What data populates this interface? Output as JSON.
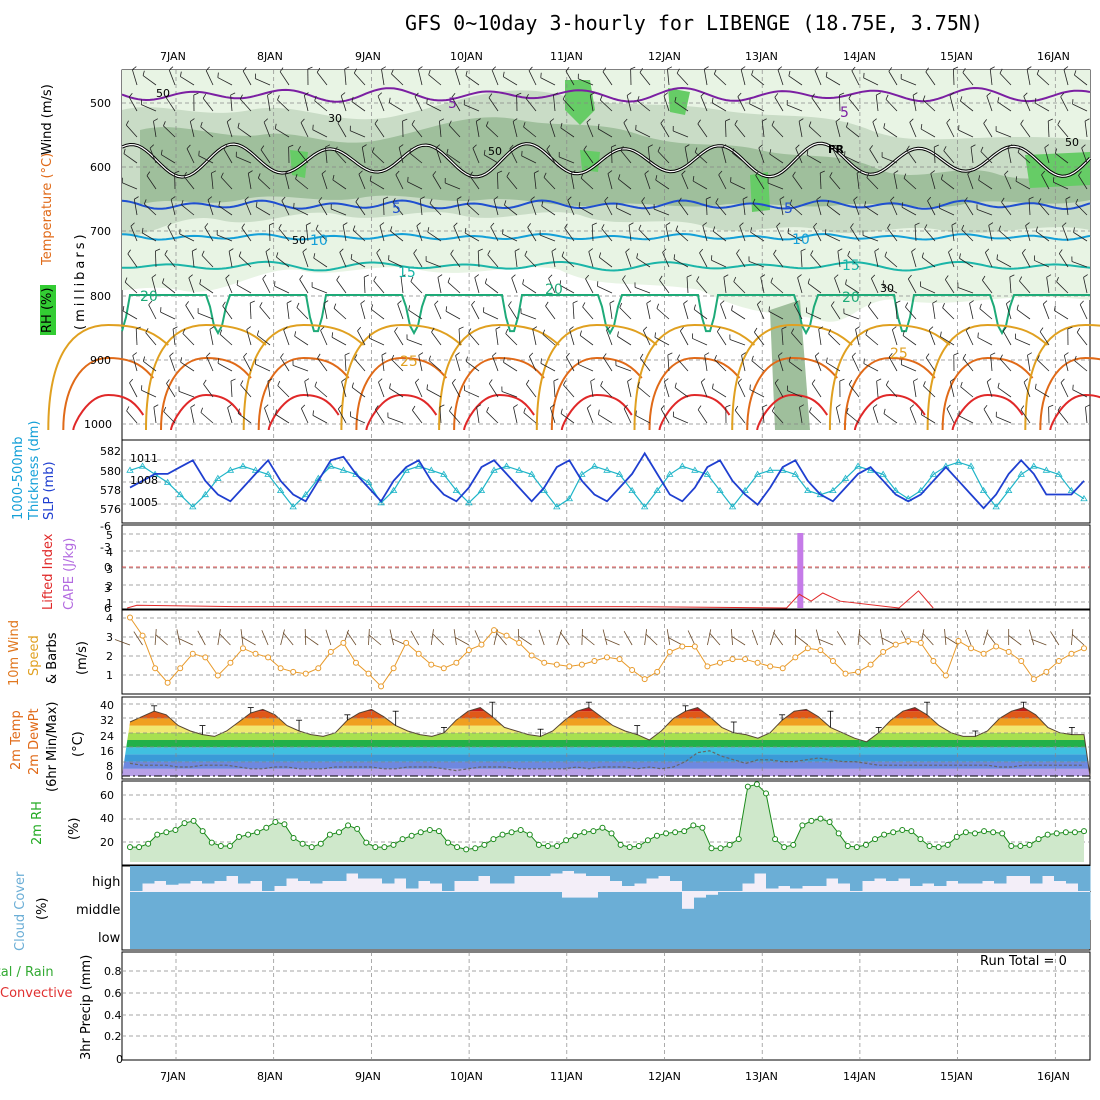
{
  "title": "GFS 0~10day 3-hourly for LIBENGE (18.75E, 3.75N)",
  "dates": [
    "7JAN",
    "8JAN",
    "9JAN",
    "10JAN",
    "11JAN",
    "12JAN",
    "13JAN",
    "14JAN",
    "15JAN",
    "16JAN"
  ],
  "colors": {
    "purple": "#7b1fa2",
    "blue": "#1f4fd0",
    "cyan": "#14a0d8",
    "teal": "#1bb5a8",
    "green": "#1eaa78",
    "gold": "#e0a020",
    "orange": "#e06a18",
    "red": "#e02828",
    "rh_light": "#e8f4e4",
    "rh_mid": "#b9cfb6",
    "rh_dark": "#7aa87a",
    "rh_bright": "#66cc66",
    "cloud": "#6baed6",
    "precip_label": "#33aa33",
    "convective": "#e03030"
  },
  "panels": {
    "upper_air": {
      "labels": [
        "Wind (m/s)",
        "Temperature (°C)",
        "RH (%)",
        "(millibars)"
      ],
      "pressure_ticks": [
        "500",
        "600",
        "700",
        "800",
        "900",
        "1000"
      ],
      "contour_labels": {
        "p5a": "5",
        "p5b": "5",
        "fr": "FR",
        "b5a": "5",
        "b5b": "5",
        "c10a": "10",
        "c10b": "10",
        "t15a": "15",
        "t15b": "15",
        "g20a": "20",
        "g20b": "20",
        "g20c": "20",
        "o25a": "25",
        "o25b": "25",
        "rh50a": "50",
        "rh30a": "30",
        "rh50b": "50",
        "rh50c": "50",
        "rh30b": "30",
        "rh50d": "50"
      }
    },
    "thickness_slp": {
      "labels": [
        "1000-500mb",
        "Thickness (dm)",
        "SLP (mb)"
      ],
      "left_ticks": [
        "582",
        "580",
        "578",
        "576"
      ],
      "right_ticks": [
        "1011",
        "1008",
        "1005"
      ]
    },
    "cape_li": {
      "labels": [
        "Lifted Index",
        "CAPE (J/kg)"
      ],
      "li_ticks": [
        "-6",
        "-3",
        "0",
        "3",
        "6"
      ],
      "cape_ticks": [
        "5",
        "4",
        "3",
        "2",
        "1"
      ]
    },
    "wind10m": {
      "labels": [
        "10m Wind",
        "Speed",
        "& Barbs",
        "(m/s)"
      ],
      "ticks": [
        "4",
        "3",
        "2",
        "1"
      ]
    },
    "temp2m": {
      "labels": [
        "2m Temp",
        "2m DewPt",
        "(6hr Min/Max)",
        "(°C)"
      ],
      "ticks": [
        "40",
        "32",
        "24",
        "16",
        "8",
        "0"
      ]
    },
    "rh2m": {
      "labels": [
        "2m RH",
        "(%)"
      ],
      "ticks": [
        "60",
        "40",
        "20"
      ]
    },
    "cloud": {
      "labels": [
        "Cloud Cover",
        "(%)"
      ],
      "levels": [
        "high",
        "middle",
        "low"
      ]
    },
    "precip": {
      "labels": [
        "Total / Rain",
        "Convective",
        "3hr Precip (mm)"
      ],
      "ticks": [
        "0.8",
        "0.6",
        "0.4",
        "0.2",
        "0"
      ],
      "run_total": "Run Total = 0"
    }
  },
  "chart_data": [
    {
      "type": "line",
      "name": "Thickness",
      "ylabel": "1000-500mb Thickness (dm)",
      "ylim": [
        575,
        583
      ],
      "values": [
        580.5,
        581,
        580,
        579,
        577.5,
        576,
        577.5,
        579.5,
        580.5,
        581,
        580.5,
        580,
        578,
        576,
        577.5,
        579.5,
        581,
        580.5,
        580,
        579,
        576.5,
        578,
        580.5,
        581,
        580.5,
        580,
        578,
        576.5,
        578,
        580.5,
        581,
        580.5,
        580,
        578,
        576,
        577,
        580,
        581,
        580.5,
        580,
        578,
        576,
        578,
        580,
        581,
        580.5,
        580,
        578,
        576,
        578,
        580,
        580.5,
        580.5,
        580,
        578,
        577.5,
        578,
        579.5,
        581,
        580.5,
        580,
        578,
        577,
        578,
        580,
        581,
        581.5,
        581,
        578,
        576,
        578,
        580,
        581,
        580.5,
        580,
        578,
        577
      ]
    },
    {
      "type": "line",
      "name": "SLP",
      "ylabel": "SLP (mb)",
      "ylim": [
        1003,
        1012.5
      ],
      "values": [
        1007,
        1008,
        1009,
        1009,
        1010,
        1011,
        1008,
        1006,
        1005,
        1007,
        1009,
        1011,
        1008,
        1006,
        1005,
        1008,
        1011,
        1011.5,
        1009,
        1007,
        1005,
        1008,
        1010,
        1011,
        1008,
        1006,
        1005,
        1007,
        1010,
        1011,
        1009,
        1007,
        1005,
        1007,
        1010,
        1011,
        1008,
        1006,
        1005,
        1007,
        1009,
        1012,
        1009,
        1006,
        1005,
        1007,
        1010,
        1011,
        1008,
        1006,
        1004.5,
        1007,
        1010,
        1011,
        1008,
        1006,
        1005,
        1007,
        1009,
        1010,
        1008,
        1006,
        1005,
        1006,
        1008,
        1010,
        1008,
        1006,
        1004,
        1006,
        1009,
        1011,
        1009,
        1006,
        1006,
        1006,
        1008
      ]
    },
    {
      "type": "bar",
      "name": "CAPE",
      "ylabel": "CAPE (J/kg)",
      "ylim": [
        0,
        5
      ],
      "x_day": 13.39,
      "values": [
        5
      ]
    },
    {
      "type": "line",
      "name": "Lifted Index",
      "ylabel": "Lifted Index",
      "ylim": [
        -6,
        6
      ],
      "points": [
        [
          6.5,
          6
        ],
        [
          6.6,
          5.6
        ],
        [
          7.6,
          5.8
        ],
        [
          11.6,
          5.8
        ],
        [
          13.25,
          6
        ],
        [
          13.38,
          4
        ],
        [
          13.5,
          5
        ],
        [
          13.62,
          3.8
        ],
        [
          13.8,
          5
        ],
        [
          14.4,
          6
        ],
        [
          14.6,
          3.5
        ],
        [
          14.75,
          6
        ]
      ]
    },
    {
      "type": "line",
      "name": "10m Wind Speed",
      "ylabel": "(m/s)",
      "ylim": [
        0,
        4.3
      ],
      "values": [
        4,
        3,
        1.2,
        0.4,
        1.2,
        2,
        1.8,
        0.8,
        1.5,
        2.3,
        2,
        1.8,
        1.2,
        1,
        0.9,
        1.2,
        2.1,
        2.6,
        1.5,
        0.9,
        0.2,
        1.2,
        2.6,
        2,
        1.4,
        1.2,
        1.5,
        2.2,
        2.5,
        3.3,
        3,
        2.6,
        1.9,
        1.5,
        1.4,
        1.3,
        1.4,
        1.6,
        1.8,
        1.7,
        1.1,
        0.6,
        1,
        2.1,
        2.4,
        2.4,
        1.3,
        1.5,
        1.7,
        1.7,
        1.5,
        1.3,
        1.2,
        1.8,
        2.3,
        2.2,
        1.6,
        0.9,
        1,
        1.4,
        2.1,
        2.5,
        2.7,
        2.6,
        1.6,
        0.8,
        2.7,
        2.3,
        2,
        2.4,
        2.1,
        1.6,
        0.6,
        1,
        1.6,
        2,
        2.3
      ]
    },
    {
      "type": "area",
      "name": "2m Temp",
      "ylabel": "(°C)",
      "ylim": [
        0,
        40
      ],
      "series": [
        {
          "name": "Temp",
          "values": [
            30,
            33,
            36,
            34,
            28,
            25,
            23,
            22,
            25,
            30,
            35,
            37,
            34,
            28,
            25,
            23,
            22,
            24,
            31,
            35,
            37,
            33,
            28,
            25,
            23,
            22,
            24,
            31,
            36,
            38,
            33,
            27,
            25,
            23,
            22,
            25,
            31,
            36,
            38,
            33,
            28,
            25,
            23,
            20,
            25,
            32,
            36,
            38,
            33,
            27,
            24,
            23,
            21,
            24,
            31,
            36,
            37,
            33,
            27,
            24,
            21,
            19,
            24,
            31,
            36,
            38,
            34,
            28,
            24,
            22,
            22,
            25,
            32,
            36,
            38,
            34,
            27,
            24,
            23,
            23
          ]
        },
        {
          "name": "DewPt",
          "values": [
            7,
            6,
            6,
            6,
            5,
            5,
            6,
            6,
            6,
            5,
            4,
            4,
            5,
            5,
            4,
            4,
            4,
            5,
            5,
            5,
            5,
            4,
            4,
            5,
            5,
            5,
            4,
            3,
            4,
            5,
            5,
            5,
            4,
            4,
            4,
            4,
            4,
            5,
            4,
            5,
            5,
            5,
            4,
            5,
            4,
            5,
            8,
            13,
            14,
            11,
            9,
            7,
            9,
            9,
            8,
            8,
            9,
            10,
            9,
            8,
            8,
            7,
            6,
            6,
            6,
            6,
            6,
            6,
            6,
            6,
            6,
            6,
            5,
            5,
            6,
            6,
            6,
            6,
            6,
            6
          ]
        }
      ]
    },
    {
      "type": "area",
      "name": "2m RH",
      "ylabel": "(%)",
      "ylim": [
        0,
        70
      ],
      "values": [
        13,
        13,
        16,
        24,
        26,
        28,
        34,
        36,
        27,
        17,
        14,
        14,
        22,
        24,
        26,
        30,
        35,
        33,
        21,
        16,
        13,
        16,
        24,
        26,
        32,
        29,
        17,
        13,
        13,
        15,
        20,
        23,
        26,
        28,
        27,
        17,
        13,
        11,
        12,
        15,
        20,
        24,
        26,
        28,
        24,
        15,
        14,
        14,
        19,
        23,
        26,
        27,
        30,
        25,
        15,
        13,
        14,
        19,
        23,
        25,
        26,
        27,
        32,
        30,
        12,
        12,
        15,
        20,
        66,
        68,
        60,
        20,
        13,
        15,
        32,
        36,
        38,
        35,
        25,
        14,
        13,
        15,
        20,
        24,
        26,
        28,
        27,
        20,
        14,
        13,
        15,
        22,
        26,
        25,
        27,
        26,
        25,
        14,
        14,
        15,
        20,
        24,
        25,
        26,
        26,
        27
      ]
    },
    {
      "type": "bar",
      "name": "Cloud Cover high",
      "ylabel": "(%)",
      "ylim": [
        0,
        100
      ],
      "values": [
        100,
        70,
        60,
        75,
        70,
        60,
        70,
        60,
        40,
        70,
        60,
        100,
        80,
        50,
        60,
        70,
        60,
        60,
        30,
        50,
        50,
        70,
        50,
        90,
        60,
        70,
        100,
        60,
        60,
        40,
        70,
        70,
        40,
        40,
        40,
        30,
        20,
        30,
        40,
        40,
        60,
        80,
        70,
        50,
        40,
        60,
        100,
        100,
        100,
        100,
        100,
        70,
        30,
        90,
        80,
        90,
        80,
        80,
        50,
        70,
        100,
        60,
        50,
        60,
        50,
        80,
        70,
        80,
        60,
        70,
        70,
        60,
        70,
        40,
        40,
        70,
        40,
        60,
        70,
        100
      ]
    },
    {
      "type": "bar",
      "name": "Cloud Cover middle",
      "ylabel": "(%)",
      "ylim": [
        0,
        100
      ],
      "values": [
        100,
        100,
        100,
        100,
        100,
        100,
        100,
        100,
        100,
        100,
        100,
        100,
        100,
        100,
        100,
        100,
        100,
        100,
        100,
        100,
        100,
        100,
        100,
        100,
        100,
        100,
        100,
        100,
        100,
        100,
        100,
        100,
        100,
        100,
        100,
        100,
        80,
        80,
        80,
        100,
        100,
        100,
        100,
        100,
        100,
        100,
        40,
        80,
        90,
        100,
        100,
        100,
        100,
        100,
        100,
        100,
        100,
        100,
        100,
        100,
        100,
        100,
        100,
        100,
        100,
        100,
        100,
        100,
        100,
        100,
        100,
        100,
        100,
        100,
        100,
        100,
        100,
        100,
        100,
        100
      ]
    },
    {
      "type": "bar",
      "name": "3hr Precip",
      "ylabel": "3hr Precip (mm)",
      "ylim": [
        0,
        0.95
      ],
      "values": [
        0,
        0,
        0,
        0,
        0,
        0,
        0,
        0,
        0,
        0
      ]
    }
  ]
}
